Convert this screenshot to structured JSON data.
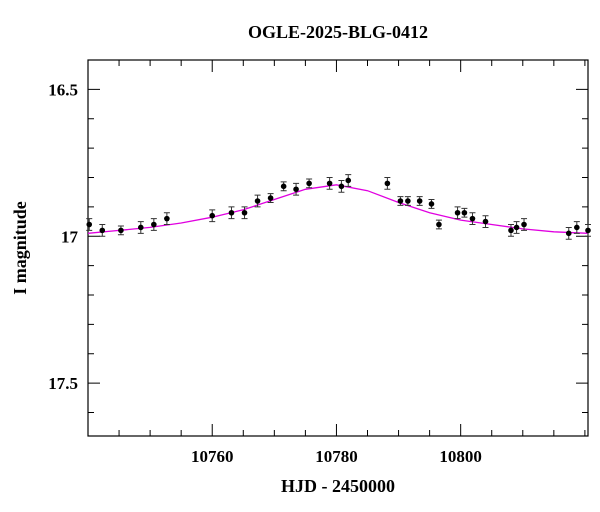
{
  "chart_data": {
    "type": "scatter",
    "title": "OGLE-2025-BLG-0412",
    "x_label": "HJD - 2450000",
    "y_label": "I magnitude",
    "xlim": [
      10740,
      10820.5
    ],
    "ylim": [
      17.68,
      16.4
    ],
    "xticks": [
      10760,
      10780,
      10800
    ],
    "xticks_minor": [
      10745,
      10750,
      10755,
      10765,
      10770,
      10775,
      10785,
      10790,
      10795,
      10805,
      10810,
      10815,
      10820
    ],
    "yticks": [
      16.5,
      17,
      17.5
    ],
    "yticks_minor": [
      16.6,
      16.7,
      16.8,
      16.9,
      17.1,
      17.2,
      17.3,
      17.4,
      17.6
    ],
    "points": {
      "color": "#000000",
      "x": [
        10740.2,
        10742.3,
        10745.3,
        10748.5,
        10750.6,
        10752.7,
        10760.0,
        10763.1,
        10765.2,
        10767.3,
        10769.4,
        10771.5,
        10773.5,
        10775.6,
        10778.9,
        10780.8,
        10781.9,
        10788.2,
        10790.3,
        10791.5,
        10793.4,
        10795.3,
        10796.5,
        10799.5,
        10800.6,
        10801.9,
        10804.0,
        10808.1,
        10809.0,
        10810.2,
        10817.4,
        10818.7,
        10820.5
      ],
      "values": [
        16.96,
        16.98,
        16.98,
        16.97,
        16.96,
        16.94,
        16.93,
        16.92,
        16.92,
        16.88,
        16.87,
        16.83,
        16.84,
        16.82,
        16.82,
        16.83,
        16.81,
        16.82,
        16.88,
        16.88,
        16.88,
        16.89,
        16.96,
        16.92,
        16.92,
        16.94,
        16.95,
        16.98,
        16.97,
        16.96,
        16.99,
        16.97,
        16.98
      ],
      "errors": [
        0.02,
        0.02,
        0.015,
        0.02,
        0.02,
        0.02,
        0.02,
        0.02,
        0.02,
        0.02,
        0.015,
        0.015,
        0.02,
        0.015,
        0.02,
        0.02,
        0.02,
        0.02,
        0.015,
        0.015,
        0.015,
        0.015,
        0.015,
        0.02,
        0.015,
        0.02,
        0.02,
        0.02,
        0.02,
        0.02,
        0.02,
        0.02,
        0.02
      ]
    },
    "model": {
      "color": "#e000e0",
      "x": [
        10740,
        10745,
        10750,
        10755,
        10760,
        10765,
        10770,
        10775,
        10780,
        10785,
        10790,
        10795,
        10800,
        10805,
        10810,
        10815,
        10820.5
      ],
      "values": [
        16.99,
        16.98,
        16.97,
        16.955,
        16.935,
        16.91,
        16.875,
        16.84,
        16.825,
        16.845,
        16.885,
        16.92,
        16.945,
        16.96,
        16.975,
        16.985,
        16.99
      ]
    }
  }
}
